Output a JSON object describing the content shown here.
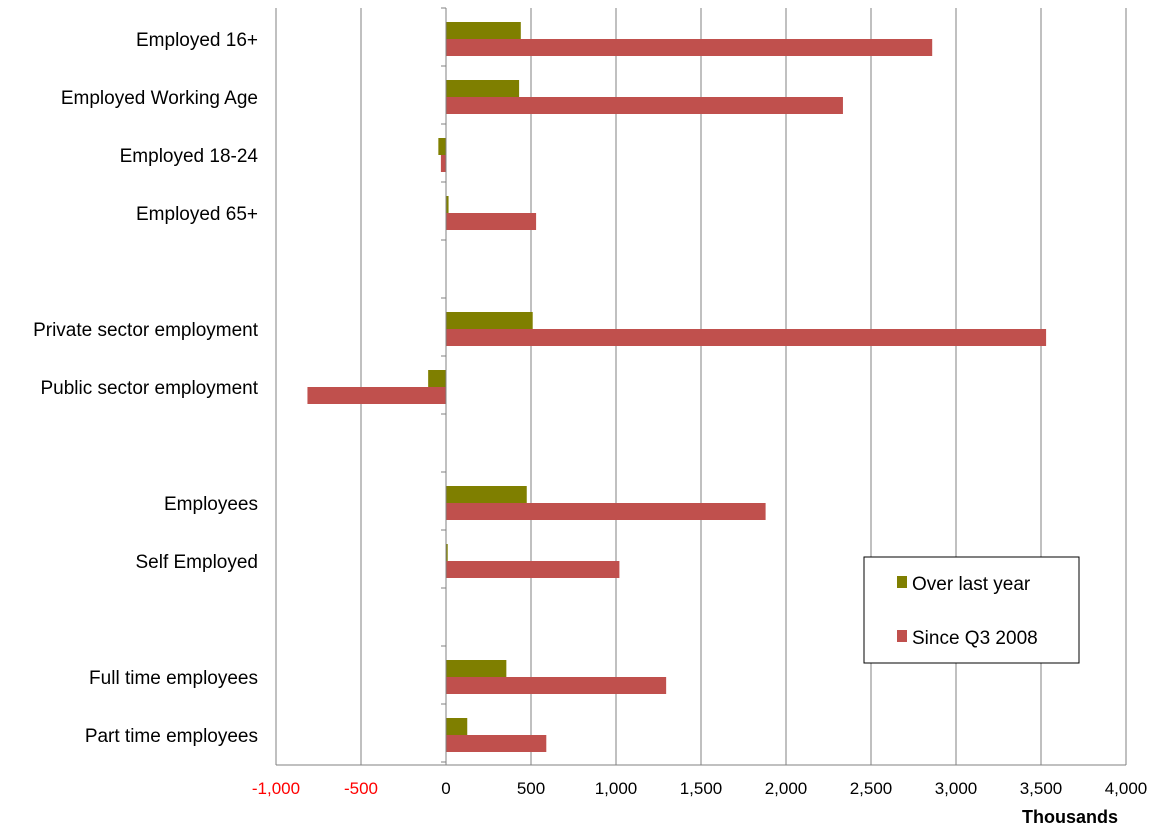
{
  "chart_data": {
    "type": "bar",
    "orientation": "horizontal",
    "categories": [
      "Employed 16+",
      "Employed Working Age",
      "Employed 18-24",
      "Employed 65+",
      "",
      "Private sector employment",
      "Public sector employment",
      "",
      "Employees",
      "Self Employed",
      "",
      "Full time employees",
      "Part time employees"
    ],
    "series": [
      {
        "name": "Over last year",
        "color": "#7f7f00",
        "values": [
          440,
          430,
          -45,
          15,
          null,
          510,
          -105,
          null,
          475,
          10,
          null,
          355,
          125
        ]
      },
      {
        "name": "Since Q3 2008",
        "color": "#c0504d",
        "values": [
          2860,
          2335,
          -30,
          530,
          null,
          3530,
          -815,
          null,
          1880,
          1020,
          null,
          1295,
          590
        ]
      }
    ],
    "xlim": [
      -1000,
      4000
    ],
    "xticks": [
      -1000,
      -500,
      0,
      500,
      1000,
      1500,
      2000,
      2500,
      3000,
      3500,
      4000
    ],
    "xtick_labels": [
      "-1,000",
      "-500",
      "0",
      "500",
      "1,000",
      "1,500",
      "2,000",
      "2,500",
      "3,000",
      "3,500",
      "4,000"
    ],
    "negative_tick_color": "#ff0000",
    "xlabel": "Thousands",
    "title": "",
    "grid": "vertical",
    "legend_position": "right"
  }
}
